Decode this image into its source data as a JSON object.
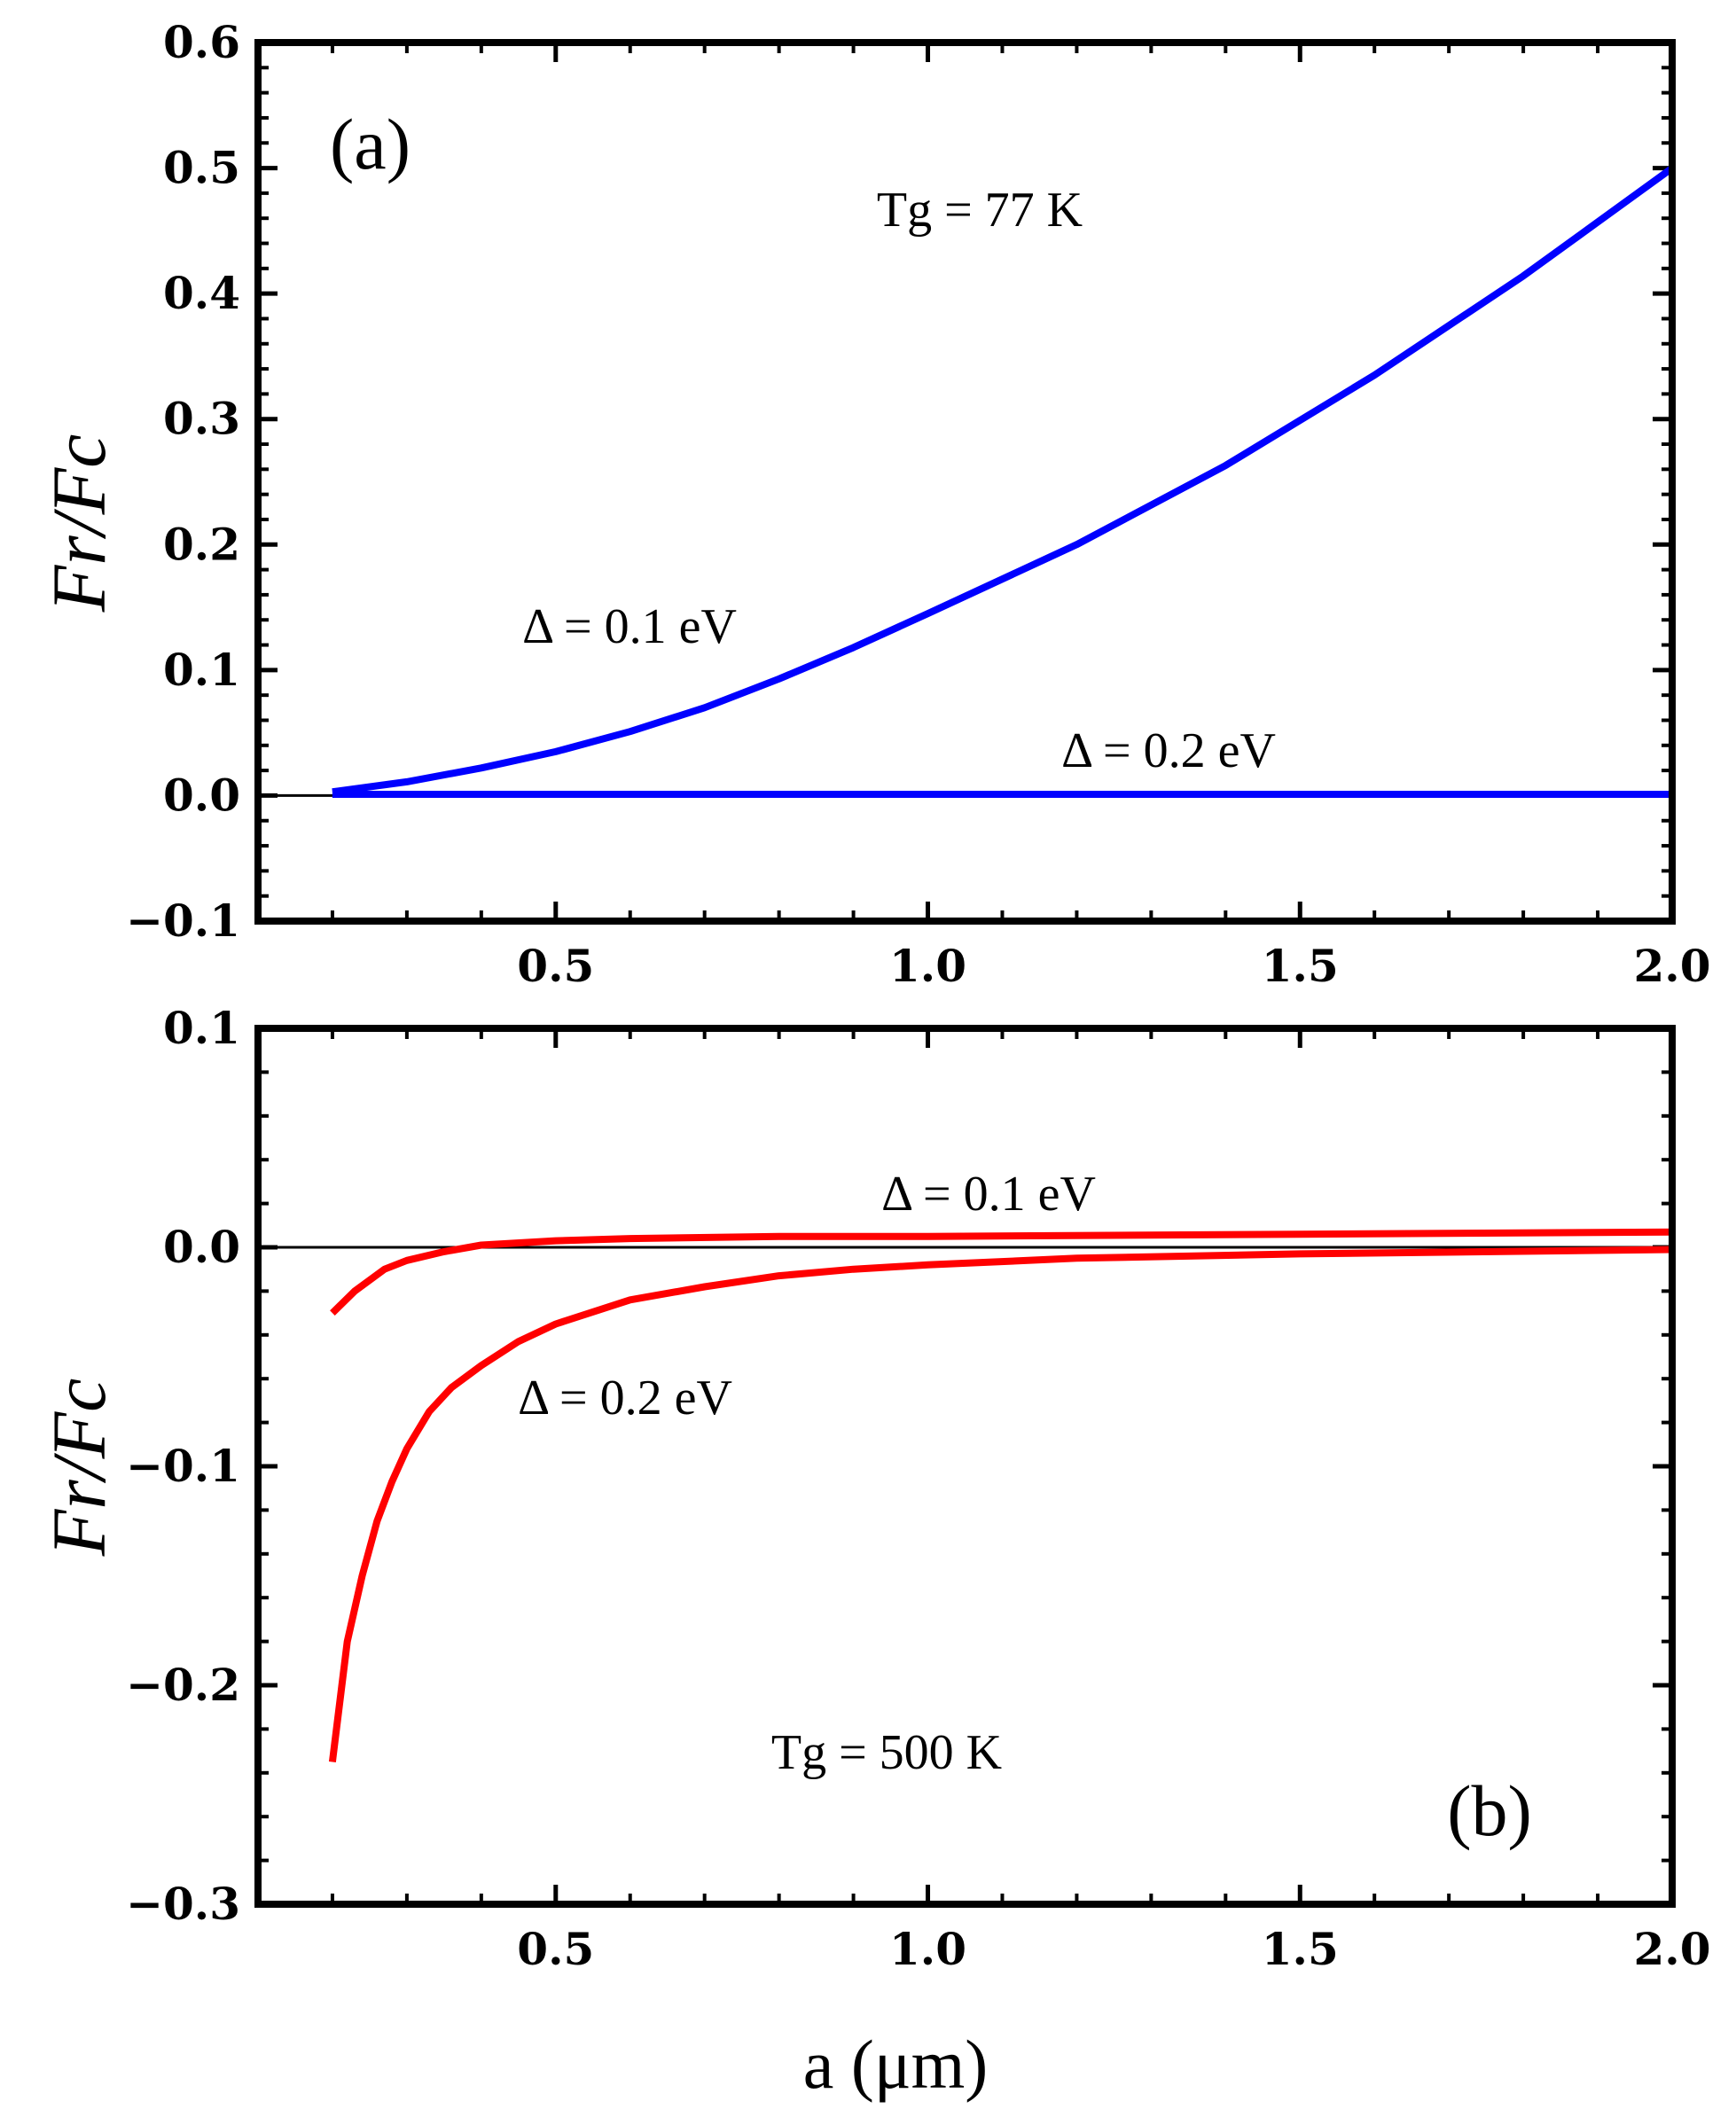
{
  "chart_data": [
    {
      "type": "line",
      "panel_label": "(a)",
      "xlabel": "a (μm)",
      "ylabel": "Fr/Fc",
      "xlim": [
        0.1,
        2.0
      ],
      "ylim": [
        -0.1,
        0.6
      ],
      "xticks": [
        "0.5",
        "1.0",
        "1.5",
        "2.0"
      ],
      "yticks": [
        "−0.1",
        "0.0",
        "0.1",
        "0.2",
        "0.3",
        "0.4",
        "0.5",
        "0.6"
      ],
      "annotation": "Tg = 77 K",
      "series": [
        {
          "name": "Δ = 0.1 eV",
          "color": "#0000ff",
          "x": [
            0.2,
            0.3,
            0.4,
            0.5,
            0.6,
            0.7,
            0.8,
            0.9,
            1.0,
            1.2,
            1.4,
            1.6,
            1.8,
            2.0
          ],
          "y": [
            0.003,
            0.011,
            0.022,
            0.035,
            0.051,
            0.07,
            0.093,
            0.118,
            0.145,
            0.2,
            0.263,
            0.335,
            0.414,
            0.5
          ]
        },
        {
          "name": "Δ = 0.2 eV",
          "color": "#0000ff",
          "x": [
            0.2,
            2.0
          ],
          "y": [
            0.001,
            0.001
          ]
        }
      ]
    },
    {
      "type": "line",
      "panel_label": "(b)",
      "xlabel": "a (μm)",
      "ylabel": "Fr/Fc",
      "xlim": [
        0.1,
        2.0
      ],
      "ylim": [
        -0.3,
        0.1
      ],
      "xticks": [
        "0.5",
        "1.0",
        "1.5",
        "2.0"
      ],
      "yticks": [
        "−0.3",
        "−0.2",
        "−0.1",
        "0.0",
        "0.1"
      ],
      "annotation": "Tg = 500 K",
      "series": [
        {
          "name": "Δ = 0.1 eV",
          "color": "#ff0000",
          "x": [
            0.2,
            0.23,
            0.27,
            0.3,
            0.35,
            0.4,
            0.5,
            0.6,
            0.8,
            1.0,
            1.5,
            2.0
          ],
          "y": [
            -0.03,
            -0.02,
            -0.01,
            -0.006,
            -0.002,
            0.001,
            0.003,
            0.004,
            0.005,
            0.005,
            0.006,
            0.007
          ]
        },
        {
          "name": "Δ = 0.2 eV",
          "color": "#ff0000",
          "x": [
            0.2,
            0.22,
            0.24,
            0.26,
            0.28,
            0.3,
            0.33,
            0.36,
            0.4,
            0.45,
            0.5,
            0.6,
            0.7,
            0.8,
            0.9,
            1.0,
            1.2,
            1.5,
            2.0
          ],
          "y": [
            -0.235,
            -0.18,
            -0.15,
            -0.125,
            -0.107,
            -0.092,
            -0.075,
            -0.064,
            -0.054,
            -0.043,
            -0.035,
            -0.024,
            -0.018,
            -0.013,
            -0.01,
            -0.008,
            -0.005,
            -0.003,
            -0.001
          ]
        }
      ]
    }
  ]
}
